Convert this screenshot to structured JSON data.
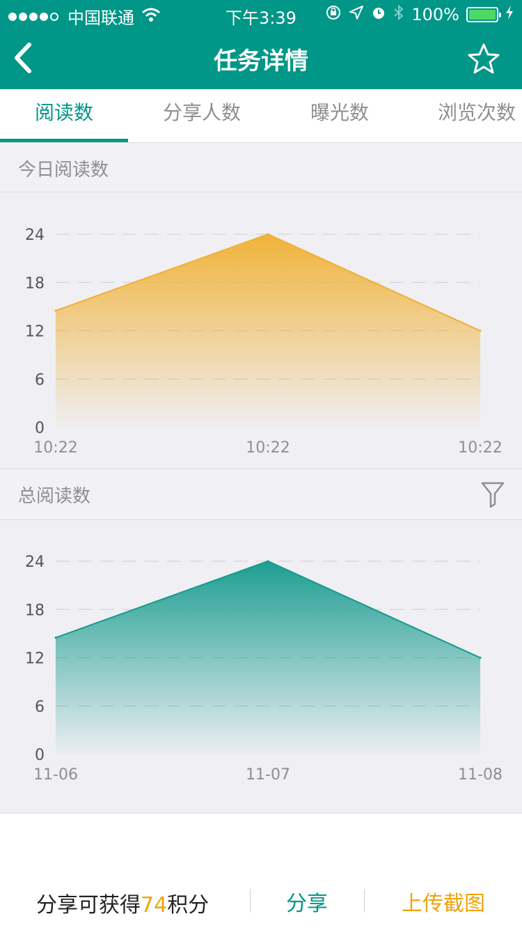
{
  "status": {
    "carrier": "中国联通",
    "time": "下午3:39",
    "battery": "100%"
  },
  "nav": {
    "title": "任务详情"
  },
  "tabs": [
    {
      "label": "阅读数",
      "active": true
    },
    {
      "label": "分享人数",
      "active": false
    },
    {
      "label": "曝光数",
      "active": false
    },
    {
      "label": "浏览次数",
      "active": false
    }
  ],
  "sections": {
    "today": {
      "label": "今日阅读数"
    },
    "total": {
      "label": "总阅读数"
    }
  },
  "chart_data": [
    {
      "type": "area",
      "x": [
        "10:22",
        "10:22",
        "10:22"
      ],
      "series": [
        {
          "values": [
            14.5,
            24,
            12
          ],
          "color": "#f0b030"
        }
      ],
      "yticks": [
        0,
        6,
        12,
        18,
        24
      ],
      "ylim": [
        0,
        24
      ],
      "grid": true
    },
    {
      "type": "area",
      "x": [
        "11-06",
        "11-07",
        "11-08"
      ],
      "series": [
        {
          "values": [
            14.5,
            24,
            12
          ],
          "color": "#139a8c"
        }
      ],
      "yticks": [
        0,
        6,
        12,
        18,
        24
      ],
      "ylim": [
        0,
        24
      ],
      "grid": true
    }
  ],
  "bottom": {
    "info_prefix": "分享可获得",
    "points": "74",
    "info_suffix": "积分",
    "share_label": "分享",
    "upload_label": "上传截图"
  },
  "colors": {
    "brand": "#009688",
    "accent": "#f0a30a"
  },
  "icons": {
    "back": "chevron-left-icon",
    "favorite": "star-icon",
    "filter": "filter-icon"
  }
}
